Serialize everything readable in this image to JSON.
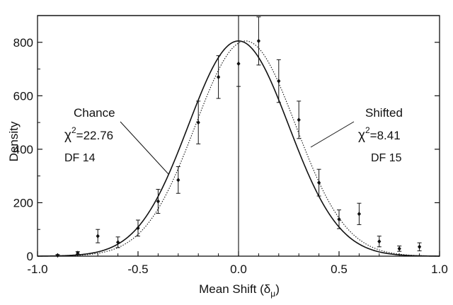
{
  "chart_data": {
    "type": "scatter",
    "xlabel": "Mean Shift (δ",
    "xlabel_sub": "μ",
    "xlabel_close": ")",
    "ylabel": "Density",
    "xlim": [
      -1.0,
      1.0
    ],
    "ylim": [
      0,
      900
    ],
    "x_ticks": [
      -1.0,
      -0.5,
      0.0,
      0.5,
      1.0
    ],
    "x_tick_labels": [
      "-1.0",
      "-0.5",
      "0.0",
      "0.5",
      "1.0"
    ],
    "y_ticks": [
      0,
      200,
      400,
      600,
      800
    ],
    "y_tick_labels": [
      "0",
      "200",
      "400",
      "600",
      "800"
    ],
    "grid": false,
    "vertical_reference_x": 0.0,
    "series": [
      {
        "points": [
          {
            "x": -0.9,
            "y": 3,
            "err": 3
          },
          {
            "x": -0.8,
            "y": 12,
            "err": 5
          },
          {
            "x": -0.7,
            "y": 75,
            "err": 25
          },
          {
            "x": -0.6,
            "y": 52,
            "err": 20
          },
          {
            "x": -0.5,
            "y": 105,
            "err": 30
          },
          {
            "x": -0.4,
            "y": 205,
            "err": 45
          },
          {
            "x": -0.3,
            "y": 285,
            "err": 50
          },
          {
            "x": -0.2,
            "y": 500,
            "err": 80
          },
          {
            "x": -0.1,
            "y": 670,
            "err": 80
          },
          {
            "x": 0.0,
            "y": 720,
            "err": 85
          },
          {
            "x": 0.1,
            "y": 805,
            "err": 90
          },
          {
            "x": 0.2,
            "y": 655,
            "err": 80
          },
          {
            "x": 0.3,
            "y": 510,
            "err": 70
          },
          {
            "x": 0.4,
            "y": 275,
            "err": 50
          },
          {
            "x": 0.5,
            "y": 138,
            "err": 35
          },
          {
            "x": 0.6,
            "y": 158,
            "err": 40
          },
          {
            "x": 0.7,
            "y": 55,
            "err": 20
          },
          {
            "x": 0.8,
            "y": 28,
            "err": 10
          },
          {
            "x": 0.9,
            "y": 35,
            "err": 15
          }
        ]
      },
      {
        "curve": "gaussian",
        "style": "solid",
        "mean": 0.0,
        "sigma": 0.25,
        "peak": 805
      },
      {
        "curve": "gaussian",
        "style": "dotted",
        "mean": 0.035,
        "sigma": 0.25,
        "peak": 805
      }
    ],
    "annotations": [
      {
        "lines": [
          "Chance",
          "χ2=22.76",
          "DF 14"
        ],
        "chi_value": "=22.76",
        "chi_sym": "χ",
        "chi_sup": "2"
      },
      {
        "lines": [
          "Shifted",
          "χ2=8.41",
          "DF 15"
        ],
        "chi_value": "=8.41",
        "chi_sym": "χ",
        "chi_sup": "2"
      }
    ],
    "annotation_text": {
      "left_title": "Chance",
      "left_chi_sym": "χ",
      "left_chi_sup": "2",
      "left_chi_val": "=22.76",
      "left_df": "DF 14",
      "right_title": "Shifted",
      "right_chi_sym": "χ",
      "right_chi_sup": "2",
      "right_chi_val": "=8.41",
      "right_df": "DF 15"
    }
  }
}
